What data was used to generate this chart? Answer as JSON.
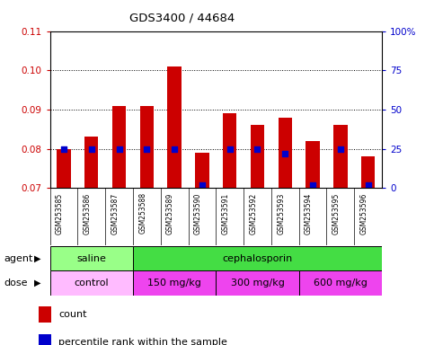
{
  "title": "GDS3400 / 44684",
  "samples": [
    "GSM253585",
    "GSM253586",
    "GSM253587",
    "GSM253588",
    "GSM253589",
    "GSM253590",
    "GSM253591",
    "GSM253592",
    "GSM253593",
    "GSM253594",
    "GSM253595",
    "GSM253596"
  ],
  "bar_values": [
    0.08,
    0.083,
    0.091,
    0.091,
    0.101,
    0.079,
    0.089,
    0.086,
    0.088,
    0.082,
    0.086,
    0.078
  ],
  "pct_right_values": [
    25,
    25,
    25,
    25,
    25,
    2,
    25,
    25,
    22,
    2,
    25,
    2
  ],
  "bar_color": "#CC0000",
  "percentile_color": "#0000CC",
  "ylim_left": [
    0.07,
    0.11
  ],
  "ylim_right": [
    0,
    100
  ],
  "yticks_left": [
    0.07,
    0.08,
    0.09,
    0.1,
    0.11
  ],
  "yticks_right": [
    0,
    25,
    50,
    75,
    100
  ],
  "ytick_labels_right": [
    "0",
    "25",
    "50",
    "75",
    "100%"
  ],
  "agent_groups": [
    {
      "label": "saline",
      "start": 0,
      "end": 3,
      "color": "#99FF88"
    },
    {
      "label": "cephalosporin",
      "start": 3,
      "end": 12,
      "color": "#44DD44"
    }
  ],
  "dose_groups": [
    {
      "label": "control",
      "start": 0,
      "end": 3,
      "color": "#FFBBFF"
    },
    {
      "label": "150 mg/kg",
      "start": 3,
      "end": 6,
      "color": "#FF55EE"
    },
    {
      "label": "300 mg/kg",
      "start": 6,
      "end": 9,
      "color": "#FF55EE"
    },
    {
      "label": "600 mg/kg",
      "start": 9,
      "end": 12,
      "color": "#FF55EE"
    }
  ],
  "legend_count_label": "count",
  "legend_percentile_label": "percentile rank within the sample",
  "agent_label": "agent",
  "dose_label": "dose",
  "bar_width": 0.5,
  "background_color": "#FFFFFF",
  "tick_label_color_left": "#CC0000",
  "tick_label_color_right": "#0000CC"
}
